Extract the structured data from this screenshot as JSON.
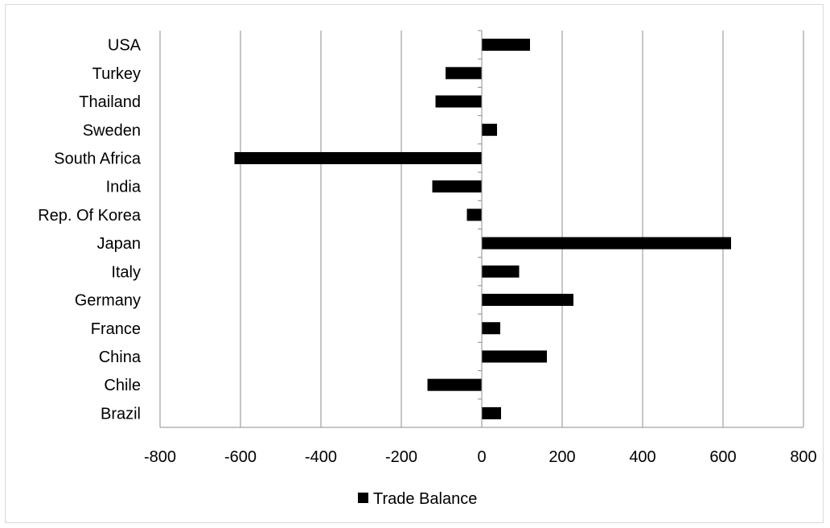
{
  "chart_data": {
    "type": "bar",
    "orientation": "horizontal",
    "categories": [
      "Brazil",
      "Chile",
      "China",
      "France",
      "Germany",
      "Italy",
      "Japan",
      "Rep. Of Korea",
      "India",
      "South Africa",
      "Sweden",
      "Thailand",
      "Turkey",
      "USA"
    ],
    "series": [
      {
        "name": "Trade Balance",
        "values": [
          48,
          -135,
          162,
          46,
          228,
          93,
          620,
          -37,
          -123,
          -615,
          38,
          -115,
          -90,
          120
        ]
      }
    ],
    "xlim": [
      -800,
      800
    ],
    "xticks": [
      "-800",
      "-600",
      "-400",
      "-200",
      "0",
      "200",
      "400",
      "600",
      "800"
    ],
    "grid": "vertical",
    "legend": "bottom",
    "bar_color": "#000000",
    "grid_color": "#8c8c8c"
  }
}
